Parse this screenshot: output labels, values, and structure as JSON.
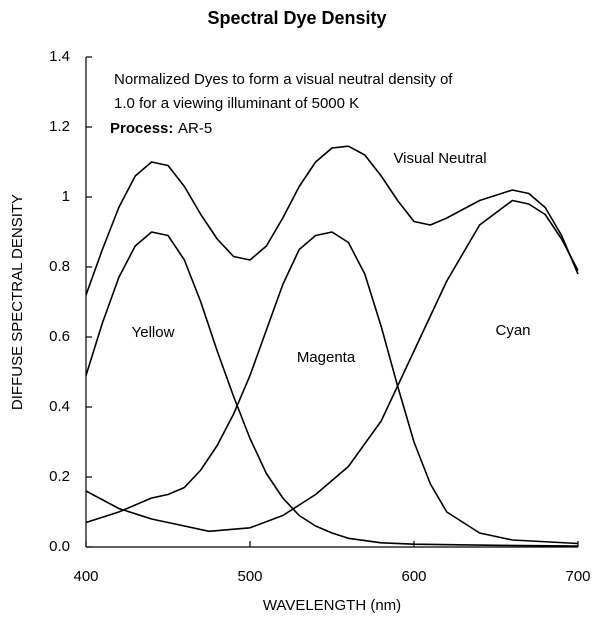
{
  "chart_data": {
    "type": "line",
    "title": "Spectral Dye Density",
    "xlabel": "WAVELENGTH (nm)",
    "ylabel": "DIFFUSE SPECTRAL DENSITY",
    "annotations": [
      "Normalized Dyes to form a visual neutral density of",
      "1.0 for a viewing illuminant of 5000 K",
      "Process:",
      "AR-5"
    ],
    "xlim": [
      400,
      700
    ],
    "ylim": [
      0,
      1.4
    ],
    "xticks": [
      400,
      500,
      600,
      700
    ],
    "yticks": [
      {
        "value": 0,
        "label": "0.0"
      },
      0.2,
      0.4,
      0.6,
      0.8,
      1,
      1.2,
      1.4
    ],
    "series": [
      {
        "name": "Visual Neutral",
        "color": "#000000",
        "x": [
          400,
          410,
          420,
          430,
          440,
          450,
          460,
          470,
          480,
          490,
          500,
          510,
          520,
          530,
          540,
          550,
          560,
          570,
          580,
          590,
          600,
          610,
          620,
          640,
          660,
          670,
          680,
          690,
          700
        ],
        "values": [
          0.72,
          0.85,
          0.97,
          1.06,
          1.1,
          1.09,
          1.03,
          0.95,
          0.88,
          0.83,
          0.82,
          0.86,
          0.94,
          1.03,
          1.1,
          1.14,
          1.145,
          1.12,
          1.06,
          0.99,
          0.93,
          0.92,
          0.94,
          0.99,
          1.02,
          1.01,
          0.97,
          0.89,
          0.78
        ]
      },
      {
        "name": "Yellow",
        "color": "#000000",
        "x": [
          400,
          410,
          420,
          430,
          440,
          450,
          460,
          470,
          480,
          490,
          500,
          510,
          520,
          530,
          540,
          550,
          560,
          580,
          600,
          650,
          700
        ],
        "values": [
          0.49,
          0.64,
          0.77,
          0.86,
          0.9,
          0.89,
          0.82,
          0.7,
          0.56,
          0.43,
          0.31,
          0.21,
          0.14,
          0.09,
          0.06,
          0.04,
          0.025,
          0.012,
          0.008,
          0.005,
          0.003
        ]
      },
      {
        "name": "Magenta",
        "color": "#000000",
        "x": [
          400,
          420,
          440,
          450,
          460,
          470,
          480,
          490,
          500,
          510,
          520,
          530,
          540,
          550,
          560,
          570,
          580,
          590,
          600,
          610,
          620,
          640,
          660,
          700
        ],
        "values": [
          0.07,
          0.1,
          0.14,
          0.15,
          0.17,
          0.22,
          0.29,
          0.38,
          0.49,
          0.62,
          0.75,
          0.85,
          0.89,
          0.9,
          0.87,
          0.78,
          0.63,
          0.46,
          0.3,
          0.18,
          0.1,
          0.04,
          0.02,
          0.01
        ]
      },
      {
        "name": "Cyan",
        "color": "#000000",
        "x": [
          400,
          420,
          440,
          460,
          475,
          500,
          520,
          540,
          560,
          580,
          590,
          600,
          620,
          640,
          660,
          670,
          680,
          690,
          700
        ],
        "values": [
          0.16,
          0.11,
          0.08,
          0.06,
          0.045,
          0.055,
          0.09,
          0.15,
          0.23,
          0.36,
          0.46,
          0.56,
          0.76,
          0.92,
          0.99,
          0.98,
          0.95,
          0.88,
          0.79
        ]
      }
    ]
  }
}
